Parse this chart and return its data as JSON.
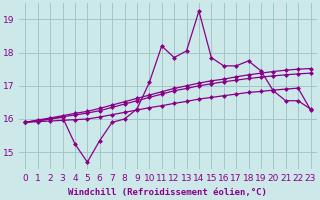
{
  "xlabel": "Windchill (Refroidissement éolien,°C)",
  "background_color": "#cde8e8",
  "grid_color": "#a0c8c8",
  "line_color": "#880088",
  "x_values": [
    0,
    1,
    2,
    3,
    4,
    5,
    6,
    7,
    8,
    9,
    10,
    11,
    12,
    13,
    14,
    15,
    16,
    17,
    18,
    19,
    20,
    21,
    22,
    23
  ],
  "series1": [
    15.9,
    15.95,
    16.0,
    16.05,
    15.25,
    14.7,
    15.35,
    15.9,
    16.0,
    16.3,
    17.1,
    18.2,
    17.85,
    18.05,
    19.25,
    17.85,
    17.6,
    17.6,
    17.75,
    17.45,
    16.85,
    16.55,
    16.55,
    16.3
  ],
  "series2": [
    15.9,
    15.97,
    16.03,
    16.1,
    16.17,
    16.23,
    16.32,
    16.42,
    16.52,
    16.62,
    16.72,
    16.82,
    16.92,
    17.0,
    17.08,
    17.15,
    17.2,
    17.27,
    17.33,
    17.38,
    17.43,
    17.47,
    17.5,
    17.52
  ],
  "series3": [
    15.9,
    15.95,
    16.0,
    16.07,
    16.12,
    16.18,
    16.25,
    16.35,
    16.45,
    16.55,
    16.65,
    16.75,
    16.85,
    16.92,
    17.0,
    17.06,
    17.12,
    17.17,
    17.22,
    17.26,
    17.3,
    17.33,
    17.36,
    17.38
  ],
  "series4": [
    15.9,
    15.92,
    15.94,
    15.96,
    15.98,
    16.0,
    16.06,
    16.13,
    16.2,
    16.27,
    16.34,
    16.4,
    16.47,
    16.53,
    16.6,
    16.65,
    16.7,
    16.75,
    16.8,
    16.83,
    16.87,
    16.9,
    16.93,
    16.28
  ],
  "ylim": [
    14.5,
    19.5
  ],
  "xlim": [
    -0.5,
    23.5
  ],
  "yticks": [
    15,
    16,
    17,
    18,
    19
  ],
  "xtick_labels": [
    "0",
    "1",
    "2",
    "3",
    "4",
    "5",
    "6",
    "7",
    "8",
    "9",
    "10",
    "11",
    "12",
    "13",
    "14",
    "15",
    "16",
    "17",
    "18",
    "19",
    "20",
    "21",
    "22",
    "23"
  ],
  "marker": "D",
  "markersize": 2.5,
  "linewidth": 0.9,
  "xlabel_fontsize": 6.5,
  "tick_fontsize": 6.5
}
